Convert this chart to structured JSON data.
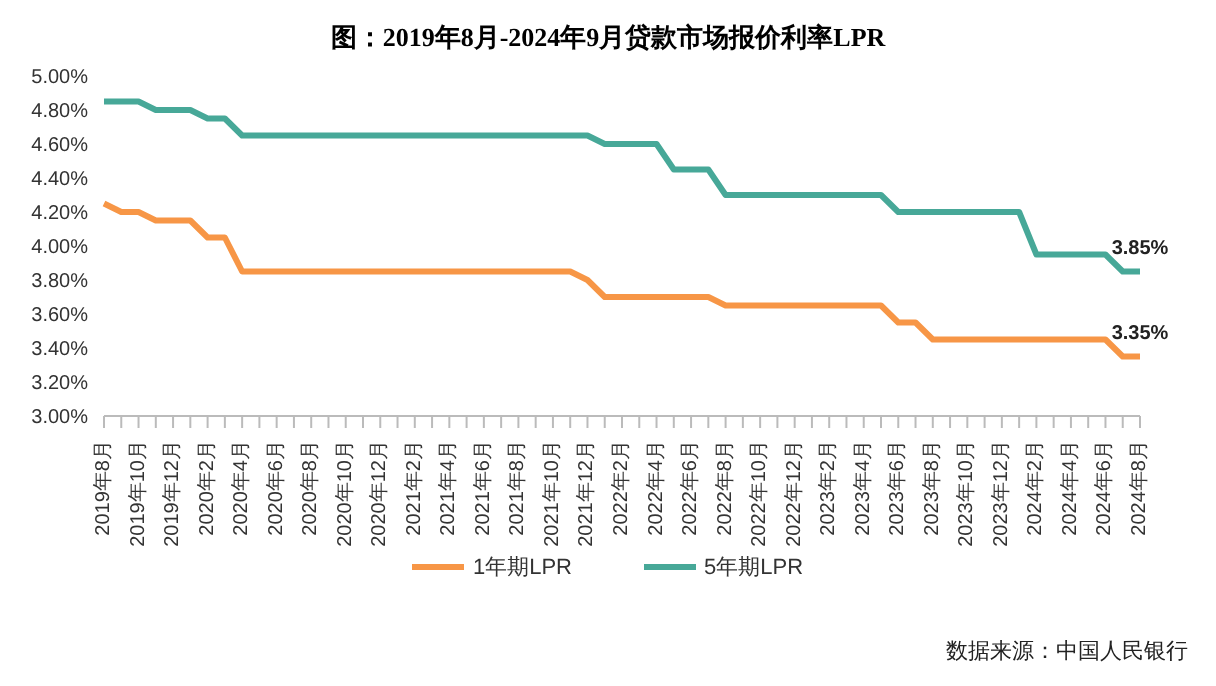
{
  "chart_data": {
    "type": "line",
    "title": "图：2019年8月-2024年9月贷款市场报价利率LPR",
    "categories": [
      "2019年8月",
      null,
      "2019年10月",
      null,
      "2019年12月",
      null,
      "2020年2月",
      null,
      "2020年4月",
      null,
      "2020年6月",
      null,
      "2020年8月",
      null,
      "2020年10月",
      null,
      "2020年12月",
      null,
      "2021年2月",
      null,
      "2021年4月",
      null,
      "2021年6月",
      null,
      "2021年8月",
      null,
      "2021年10月",
      null,
      "2021年12月",
      null,
      "2022年2月",
      null,
      "2022年4月",
      null,
      "2022年6月",
      null,
      "2022年8月",
      null,
      "2022年10月",
      null,
      "2022年12月",
      null,
      "2023年2月",
      null,
      "2023年4月",
      null,
      "2023年6月",
      null,
      "2023年8月",
      null,
      "2023年10月",
      null,
      "2023年12月",
      null,
      "2024年2月",
      null,
      "2024年4月",
      null,
      "2024年6月",
      null,
      "2024年8月"
    ],
    "series": [
      {
        "name": "1年期LPR",
        "color": "#f79646",
        "values": [
          4.25,
          4.2,
          4.2,
          4.15,
          4.15,
          4.15,
          4.05,
          4.05,
          3.85,
          3.85,
          3.85,
          3.85,
          3.85,
          3.85,
          3.85,
          3.85,
          3.85,
          3.85,
          3.85,
          3.85,
          3.85,
          3.85,
          3.85,
          3.85,
          3.85,
          3.85,
          3.85,
          3.85,
          3.8,
          3.7,
          3.7,
          3.7,
          3.7,
          3.7,
          3.7,
          3.7,
          3.65,
          3.65,
          3.65,
          3.65,
          3.65,
          3.65,
          3.65,
          3.65,
          3.65,
          3.65,
          3.55,
          3.55,
          3.45,
          3.45,
          3.45,
          3.45,
          3.45,
          3.45,
          3.45,
          3.45,
          3.45,
          3.45,
          3.45,
          3.35,
          3.35
        ],
        "value_labels": [
          null,
          null,
          null,
          null,
          null,
          null,
          null,
          null,
          null,
          null,
          null,
          null,
          null,
          null,
          null,
          null,
          null,
          null,
          null,
          null,
          null,
          null,
          null,
          null,
          null,
          null,
          null,
          null,
          null,
          null,
          null,
          null,
          null,
          null,
          null,
          null,
          null,
          null,
          null,
          null,
          null,
          null,
          null,
          null,
          null,
          null,
          null,
          null,
          null,
          null,
          null,
          null,
          null,
          null,
          null,
          null,
          null,
          null,
          null,
          null,
          "3.35%"
        ]
      },
      {
        "name": "5年期LPR",
        "color": "#47a898",
        "values": [
          4.85,
          4.85,
          4.85,
          4.8,
          4.8,
          4.8,
          4.75,
          4.75,
          4.65,
          4.65,
          4.65,
          4.65,
          4.65,
          4.65,
          4.65,
          4.65,
          4.65,
          4.65,
          4.65,
          4.65,
          4.65,
          4.65,
          4.65,
          4.65,
          4.65,
          4.65,
          4.65,
          4.65,
          4.65,
          4.6,
          4.6,
          4.6,
          4.6,
          4.45,
          4.45,
          4.45,
          4.3,
          4.3,
          4.3,
          4.3,
          4.3,
          4.3,
          4.3,
          4.3,
          4.3,
          4.3,
          4.2,
          4.2,
          4.2,
          4.2,
          4.2,
          4.2,
          4.2,
          4.2,
          3.95,
          3.95,
          3.95,
          3.95,
          3.95,
          3.85,
          3.85
        ],
        "value_labels": [
          null,
          null,
          null,
          null,
          null,
          null,
          null,
          null,
          null,
          null,
          null,
          null,
          null,
          null,
          null,
          null,
          null,
          null,
          null,
          null,
          null,
          null,
          null,
          null,
          null,
          null,
          null,
          null,
          null,
          null,
          null,
          null,
          null,
          null,
          null,
          null,
          null,
          null,
          null,
          null,
          null,
          null,
          null,
          null,
          null,
          null,
          null,
          null,
          null,
          null,
          null,
          null,
          null,
          null,
          null,
          null,
          null,
          null,
          null,
          null,
          "3.85%"
        ]
      }
    ],
    "ylim": [
      3,
      5
    ],
    "yticks": [
      {
        "value": 3,
        "label": "3.00%"
      },
      {
        "value": 3.2,
        "label": "3.20%"
      },
      {
        "value": 3.4,
        "label": "3.40%"
      },
      {
        "value": 3.6,
        "label": "3.60%"
      },
      {
        "value": 3.8,
        "label": "3.80%"
      },
      {
        "value": 4,
        "label": "4.00%"
      },
      {
        "value": 4.2,
        "label": "4.20%"
      },
      {
        "value": 4.4,
        "label": "4.40%"
      },
      {
        "value": 4.6,
        "label": "4.60%"
      },
      {
        "value": 4.8,
        "label": "4.80%"
      },
      {
        "value": 5,
        "label": "5.00%"
      }
    ],
    "grid": false,
    "legend": "bottom",
    "marker": "none",
    "line_style": "solid",
    "annotations": [
      "数据来源：中国人民银行"
    ]
  }
}
